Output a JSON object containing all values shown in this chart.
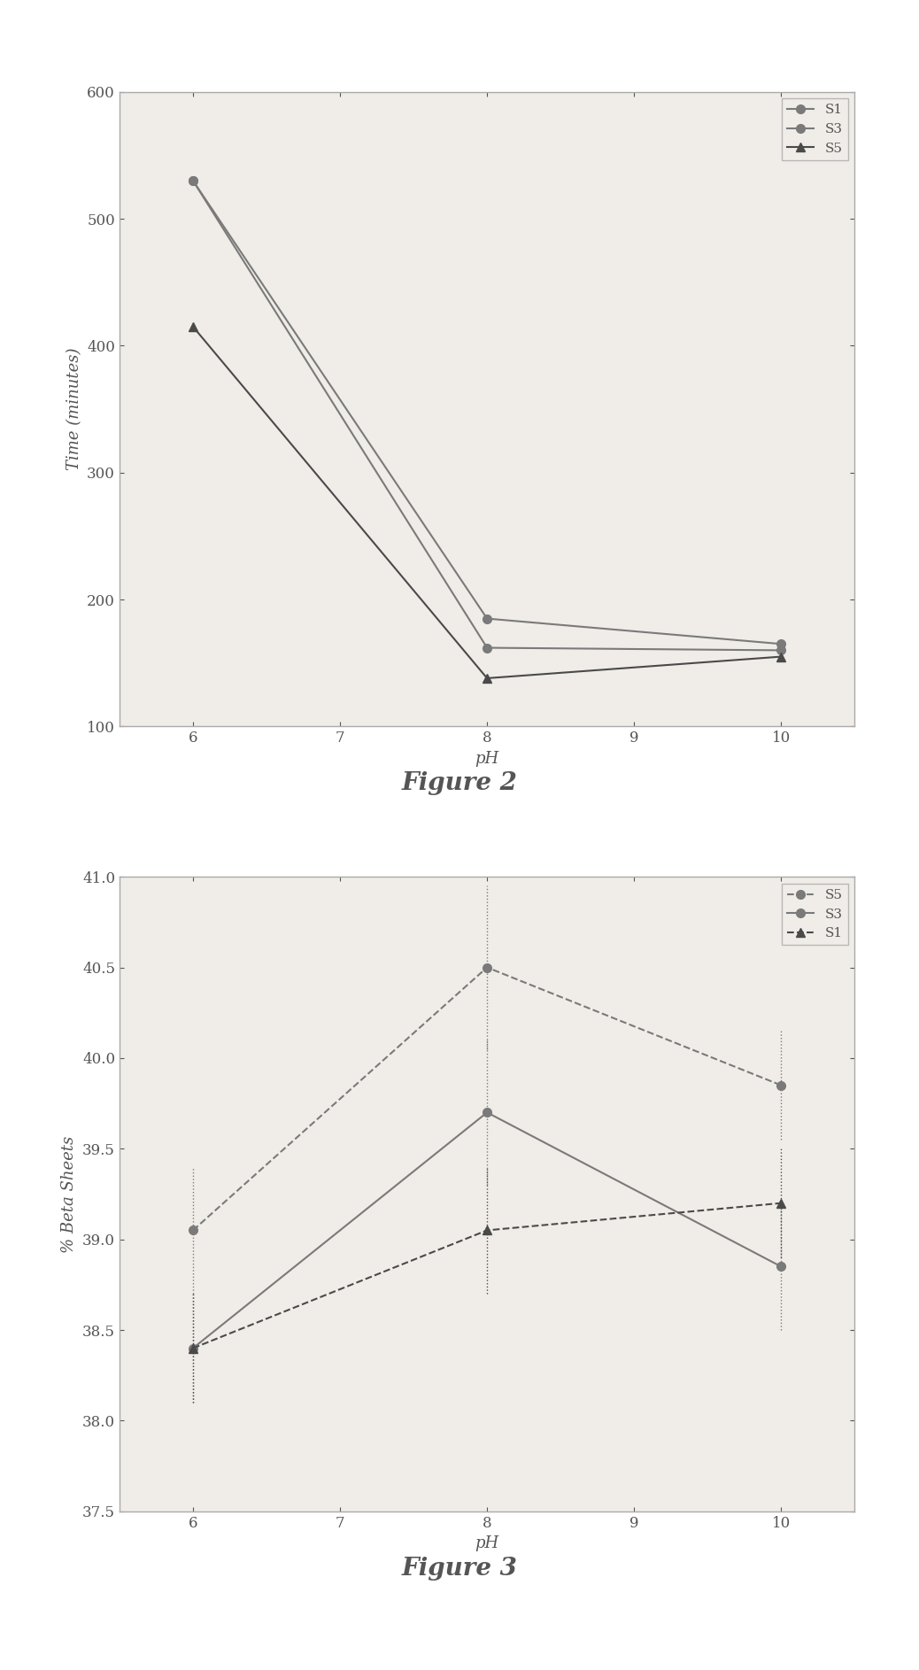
{
  "fig2": {
    "title": "Figure 2",
    "xlabel": "pH",
    "ylabel": "Time (minutes)",
    "ylim": [
      100,
      600
    ],
    "yticks": [
      100,
      200,
      300,
      400,
      500,
      600
    ],
    "xlim": [
      5.5,
      10.5
    ],
    "xticks": [
      6,
      7,
      8,
      9,
      10
    ],
    "series": [
      {
        "label": "S1",
        "x": [
          6,
          8,
          10
        ],
        "y": [
          530,
          185,
          165
        ],
        "color": "#7a7a7a",
        "marker": "o",
        "linestyle": "-",
        "markersize": 7
      },
      {
        "label": "S3",
        "x": [
          6,
          8,
          10
        ],
        "y": [
          530,
          162,
          160
        ],
        "color": "#7a7a7a",
        "marker": "o",
        "linestyle": "-",
        "markersize": 7
      },
      {
        "label": "S5",
        "x": [
          6,
          8,
          10
        ],
        "y": [
          415,
          138,
          155
        ],
        "color": "#4a4a4a",
        "marker": "^",
        "linestyle": "-",
        "markersize": 7
      }
    ]
  },
  "fig3": {
    "title": "Figure 3",
    "xlabel": "pH",
    "ylabel": "% Beta Sheets",
    "ylim": [
      37.5,
      41.0
    ],
    "yticks": [
      37.5,
      38.0,
      38.5,
      39.0,
      39.5,
      40.0,
      40.5,
      41.0
    ],
    "xlim": [
      5.5,
      10.5
    ],
    "xticks": [
      6,
      7,
      8,
      9,
      10
    ],
    "series": [
      {
        "label": "S5",
        "x": [
          6,
          8,
          10
        ],
        "y": [
          39.05,
          40.5,
          39.85
        ],
        "yerr": [
          0.35,
          0.45,
          0.3
        ],
        "color": "#7a7a7a",
        "marker": "o",
        "linestyle": "--",
        "markersize": 7
      },
      {
        "label": "S3",
        "x": [
          6,
          8,
          10
        ],
        "y": [
          38.4,
          39.7,
          38.85
        ],
        "yerr": [
          0.3,
          0.4,
          0.35
        ],
        "color": "#7a7a7a",
        "marker": "o",
        "linestyle": "-",
        "markersize": 7
      },
      {
        "label": "S1",
        "x": [
          6,
          8,
          10
        ],
        "y": [
          38.4,
          39.05,
          39.2
        ],
        "yerr": [
          0.3,
          0.35,
          0.3
        ],
        "color": "#4a4a4a",
        "marker": "^",
        "linestyle": "--",
        "markersize": 7
      }
    ]
  },
  "bg_color": "#ffffff",
  "face_color": "#f0ede8",
  "border_color": "#aaaaaa",
  "text_color": "#555555",
  "title_fontsize": 20,
  "label_fontsize": 13,
  "tick_fontsize": 12,
  "legend_fontsize": 11
}
